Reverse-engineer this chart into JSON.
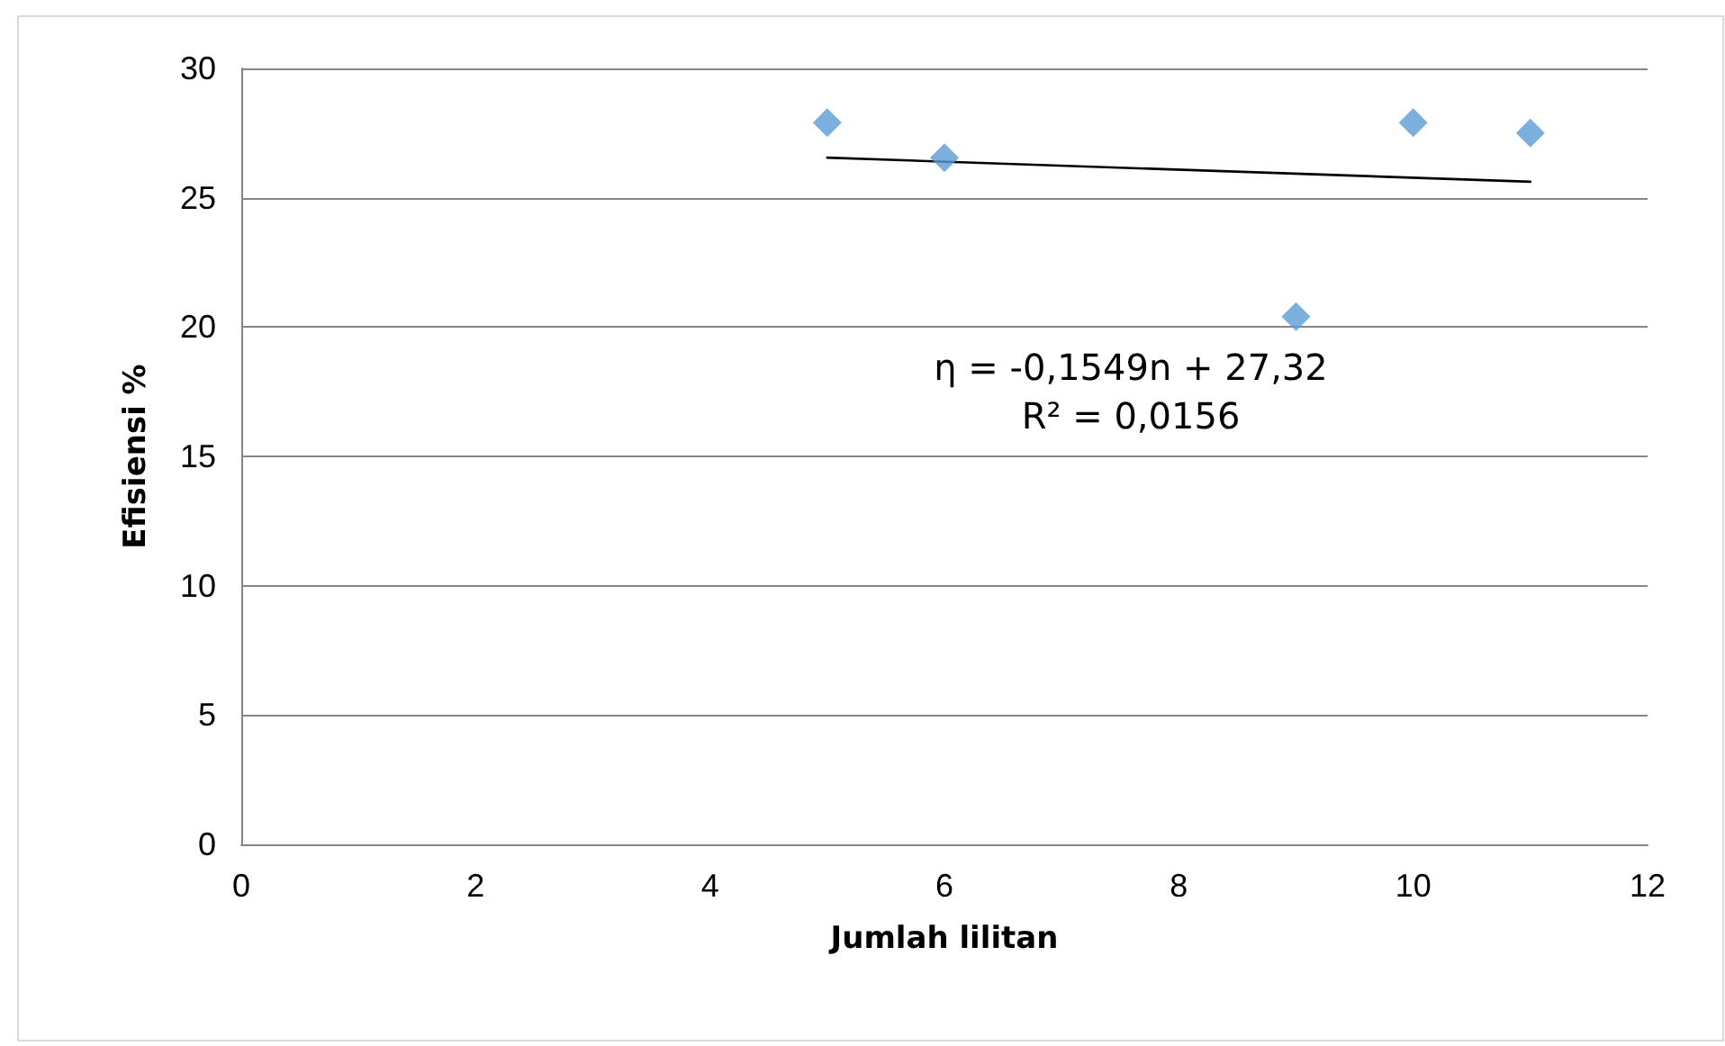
{
  "chart_data": {
    "type": "scatter",
    "xlabel": "Jumlah lilitan",
    "ylabel": "Efisiensi %",
    "series": [
      {
        "color": "#5b9bd5",
        "marker": "diamond",
        "x": [
          5,
          6,
          9,
          10,
          11
        ],
        "values": [
          27.9,
          26.55,
          20.4,
          27.9,
          27.5
        ]
      },
      {
        "type": "line",
        "color": "#000000",
        "marker": "none",
        "x": [
          5,
          11
        ],
        "values": [
          26.55,
          25.62
        ]
      }
    ],
    "annotations": [
      "η = -0,1549n + 27,32",
      "R² = 0,0156"
    ],
    "xlim": [
      0,
      12
    ],
    "xticks": [
      0,
      2,
      4,
      6,
      8,
      10,
      12
    ],
    "ylim": [
      0,
      30
    ],
    "yticks": [
      0,
      5,
      10,
      15,
      20,
      25,
      30
    ],
    "grid": "y"
  }
}
